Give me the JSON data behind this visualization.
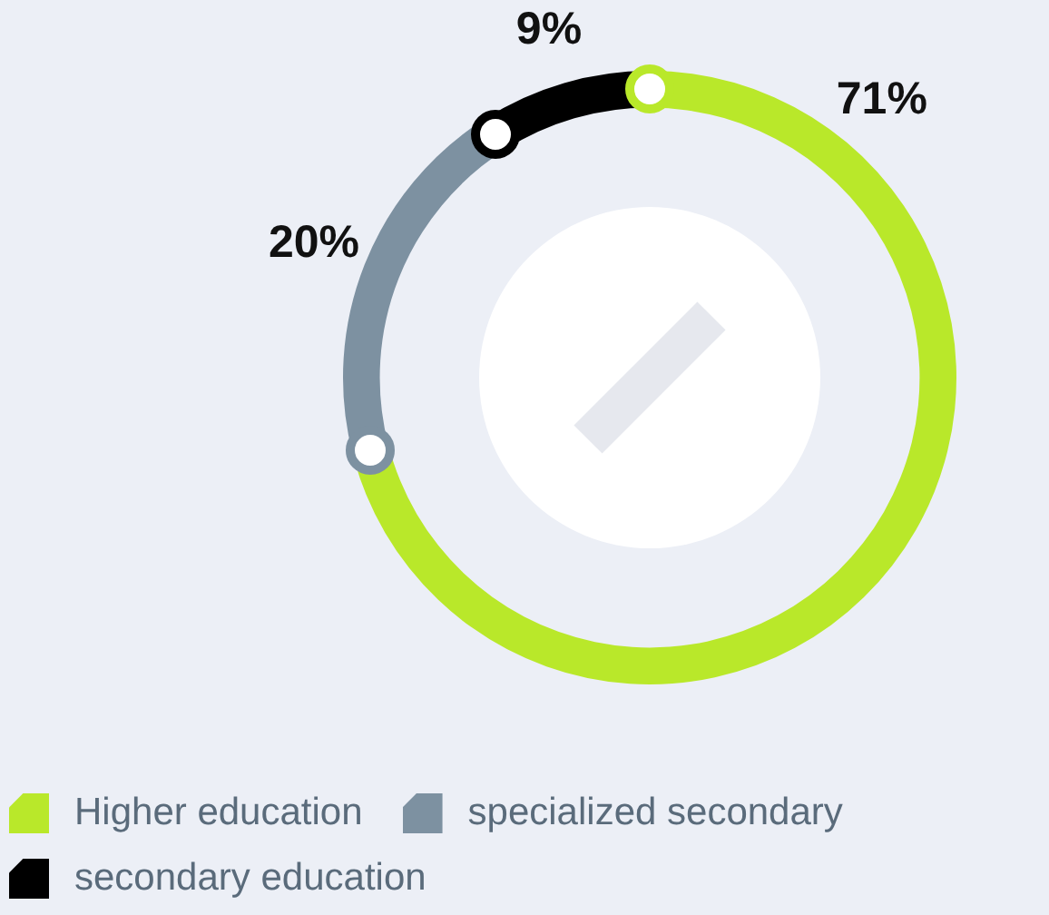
{
  "chart_data": {
    "type": "donut",
    "categories": [
      "Higher education",
      "specialized secondary",
      "secondary education"
    ],
    "values": [
      71,
      20,
      9
    ],
    "value_labels": [
      "71%",
      "20%",
      "9%"
    ],
    "colors": [
      "#b9e82a",
      "#7d91a1",
      "#000000"
    ],
    "legend": "bottom"
  }
}
